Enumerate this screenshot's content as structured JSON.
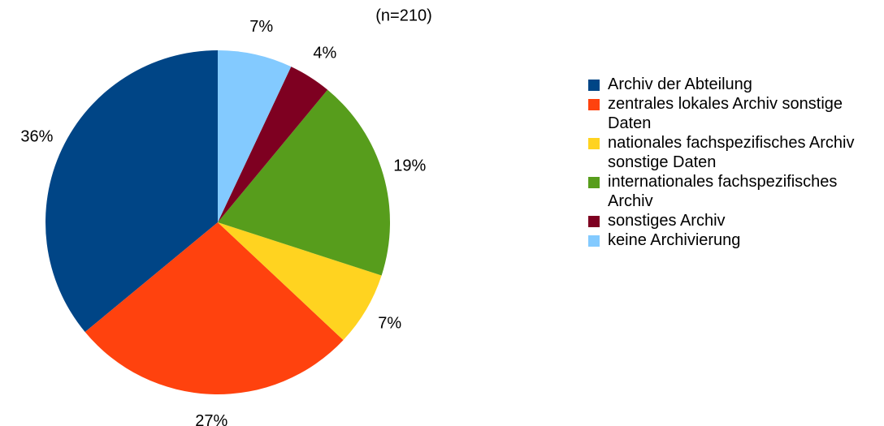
{
  "chart_data": {
    "type": "pie",
    "subtitle": "(n=210)",
    "categories": [
      "Archiv der Abteilung",
      "zentrales lokales Archiv sonstige Daten",
      "nationales fachspezifisches Archiv sonstige Daten",
      "internationales fachspezifisches Archiv",
      "sonstiges Archiv",
      "keine Archivierung"
    ],
    "values": [
      36,
      27,
      7,
      19,
      4,
      7
    ],
    "value_labels": [
      "36%",
      "27%",
      "7%",
      "19%",
      "4%",
      "7%"
    ],
    "colors": [
      "#004586",
      "#ff420e",
      "#ffd320",
      "#579d1c",
      "#7e0021",
      "#83caff"
    ],
    "start_angle": "top",
    "direction": "counterclockwise",
    "legend": "right"
  }
}
